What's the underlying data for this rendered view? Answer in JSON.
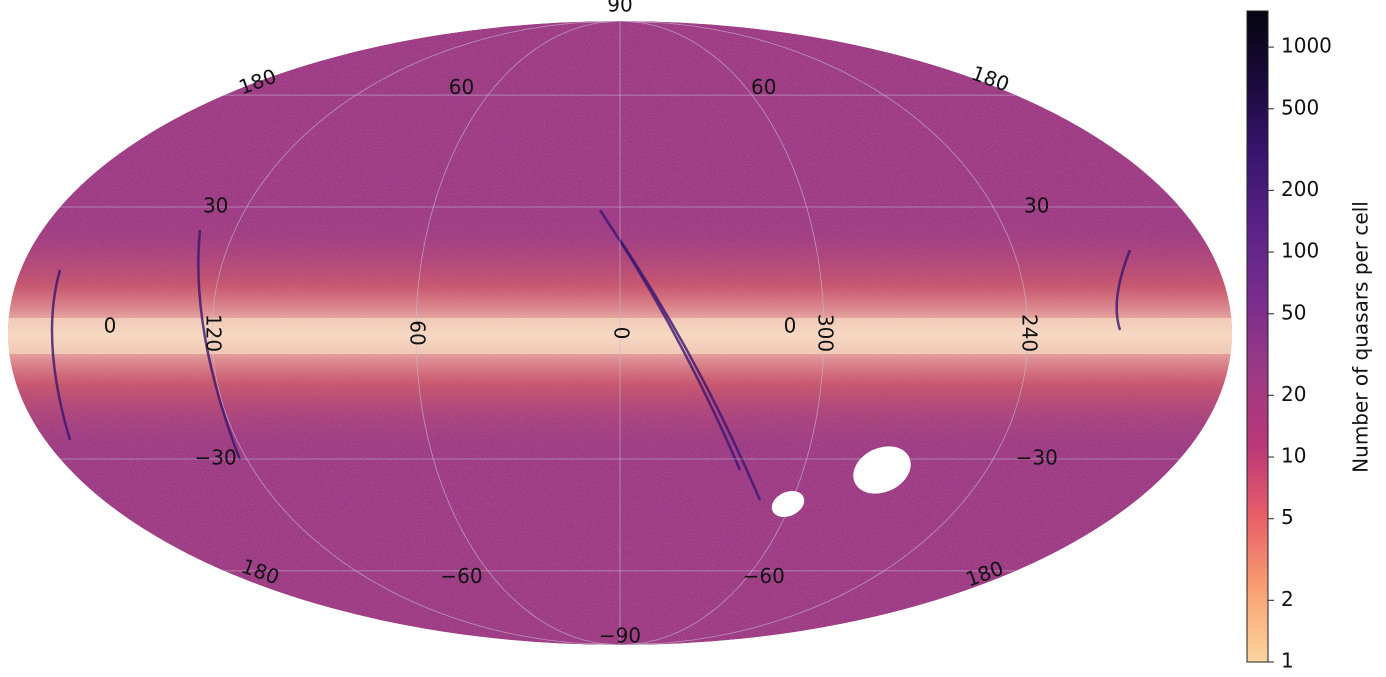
{
  "chart_data": {
    "type": "heatmap",
    "projection": "mollweide",
    "description_scale": "log",
    "colormap": "magma_r",
    "meridian_labels": [
      {
        "text": "120",
        "lon": 120,
        "rotate": true
      },
      {
        "text": "60",
        "lon": 60,
        "rotate": true
      },
      {
        "text": "0",
        "lon": 0,
        "rotate": true
      },
      {
        "text": "300",
        "lon": -60,
        "rotate": true
      },
      {
        "text": "240",
        "lon": -120,
        "rotate": true
      }
    ],
    "secondary_labels": [
      {
        "text": "0",
        "lon": 150,
        "lat": 0
      },
      {
        "text": "0",
        "lon": -50,
        "lat": 0
      }
    ],
    "parallel_labels": [
      {
        "text": "90",
        "lon": 0,
        "lat": 90
      },
      {
        "text": "60",
        "lon": 75,
        "lat": 62
      },
      {
        "text": "60",
        "lon": -68,
        "lat": 62
      },
      {
        "text": "30",
        "lon": 130,
        "lat": 30
      },
      {
        "text": "30",
        "lon": -134,
        "lat": 30
      },
      {
        "text": "−30",
        "lon": 130,
        "lat": -30
      },
      {
        "text": "−30",
        "lon": -134,
        "lat": -30
      },
      {
        "text": "−60",
        "lon": 75,
        "lat": -62
      },
      {
        "text": "−60",
        "lon": -68,
        "lat": -62
      },
      {
        "text": "−90",
        "lon": 0,
        "lat": -90
      }
    ],
    "edge_labels": [
      {
        "text": "180",
        "pos": "top-left"
      },
      {
        "text": "180",
        "pos": "top-right"
      },
      {
        "text": "180",
        "pos": "bottom-left"
      },
      {
        "text": "180",
        "pos": "bottom-right"
      }
    ],
    "colorbar": {
      "label": "Number of quasars per cell",
      "scale": "log",
      "range": [
        1,
        1500
      ],
      "ticks": [
        {
          "value": 1,
          "label": "1"
        },
        {
          "value": 2,
          "label": "2"
        },
        {
          "value": 5,
          "label": "5"
        },
        {
          "value": 10,
          "label": "10"
        },
        {
          "value": 20,
          "label": "20"
        },
        {
          "value": 50,
          "label": "50"
        },
        {
          "value": 100,
          "label": "100"
        },
        {
          "value": 200,
          "label": "200"
        },
        {
          "value": 500,
          "label": "500"
        },
        {
          "value": 1000,
          "label": "1000"
        }
      ],
      "colors": [
        "#fcd59f",
        "#f8a172",
        "#e85f68",
        "#b93778",
        "#9c3a85",
        "#7a2e8e",
        "#5a2287",
        "#3a1570",
        "#1a0a3e",
        "#050510"
      ]
    },
    "features": {
      "background_color": "#9c3a85",
      "band_color": "#f6d7c0",
      "stripe_color": "#3a1570",
      "hole_color": "#ffffff"
    }
  }
}
